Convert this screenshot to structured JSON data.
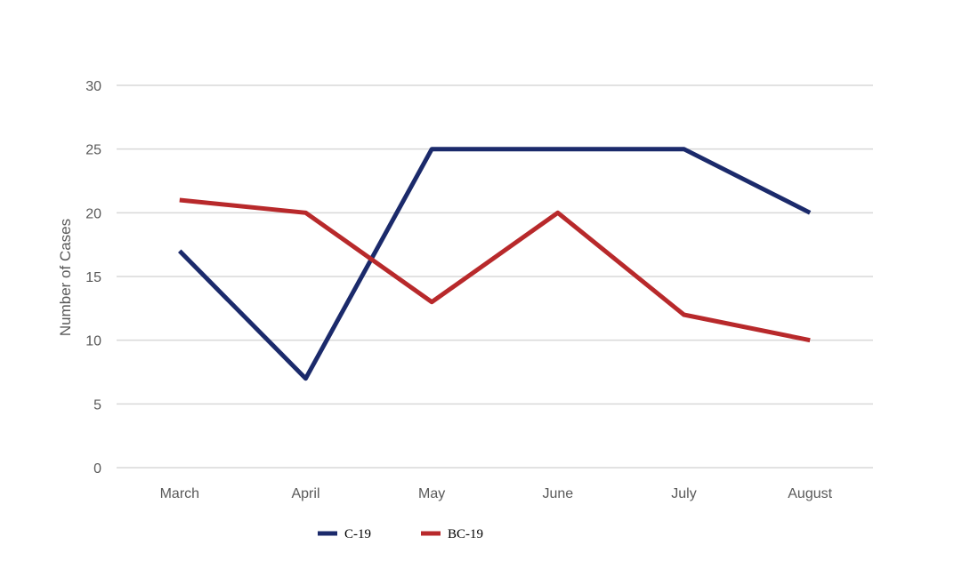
{
  "chart_data": {
    "type": "line",
    "title": "",
    "xlabel": "",
    "ylabel": "Number of Cases",
    "categories": [
      "March",
      "April",
      "May",
      "June",
      "July",
      "August"
    ],
    "ylim": [
      0,
      30
    ],
    "yticks": [
      0,
      5,
      10,
      15,
      20,
      25,
      30
    ],
    "grid": true,
    "legend_position": "bottom",
    "series": [
      {
        "name": "C-19",
        "color": "#1b2a6b",
        "values": [
          17,
          7,
          25,
          25,
          25,
          20
        ]
      },
      {
        "name": "BC-19",
        "color": "#b8292b",
        "values": [
          21,
          20,
          13,
          20,
          12,
          10
        ]
      }
    ]
  }
}
